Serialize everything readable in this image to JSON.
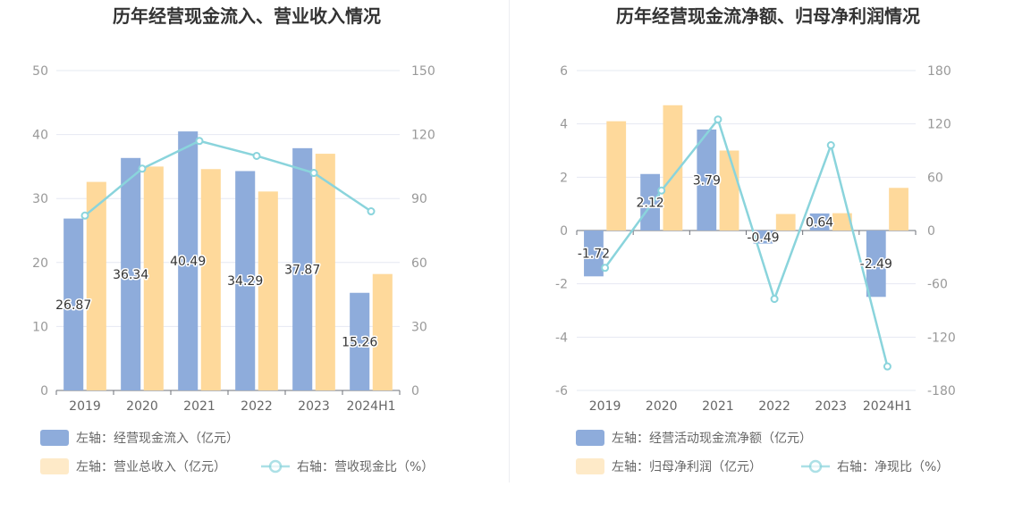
{
  "chart_data": [
    {
      "type": "bar",
      "title": "历年经营现金流入、营业收入情况",
      "categories": [
        "2019",
        "2020",
        "2021",
        "2022",
        "2023",
        "2024H1"
      ],
      "left_axis": {
        "min": 0,
        "max": 50,
        "ticks": [
          "0",
          "10",
          "20",
          "30",
          "40",
          "50"
        ]
      },
      "right_axis": {
        "min": 0,
        "max": 150,
        "ticks": [
          "0",
          "30",
          "60",
          "90",
          "120",
          "150"
        ]
      },
      "grid": true,
      "legend_position": "bottom-left",
      "series": [
        {
          "name": "左轴：经营现金流入（亿元）",
          "type": "bar",
          "axis": "left",
          "color": "#8eacdb",
          "values": [
            26.87,
            36.34,
            40.49,
            34.29,
            37.87,
            15.26
          ],
          "labels": [
            "26.87",
            "36.34",
            "40.49",
            "34.29",
            "37.87",
            "15.26"
          ]
        },
        {
          "name": "左轴：营业总收入（亿元）",
          "type": "bar",
          "axis": "left",
          "color": "#fed99b",
          "values": [
            32.6,
            35.0,
            34.6,
            31.1,
            37.0,
            18.2
          ]
        },
        {
          "name": "右轴：营收现金比（%）",
          "type": "line",
          "axis": "right",
          "color": "#8ad4dc",
          "values": [
            82,
            104,
            117,
            110,
            102,
            84
          ]
        }
      ]
    },
    {
      "type": "bar",
      "title": "历年经营现金流净额、归母净利润情况",
      "categories": [
        "2019",
        "2020",
        "2021",
        "2022",
        "2023",
        "2024H1"
      ],
      "left_axis": {
        "min": -6,
        "max": 6,
        "ticks": [
          "-6",
          "-4",
          "-2",
          "0",
          "2",
          "4",
          "6"
        ]
      },
      "right_axis": {
        "min": -180,
        "max": 180,
        "ticks": [
          "-180",
          "-120",
          "-60",
          "0",
          "60",
          "120",
          "180"
        ]
      },
      "grid": true,
      "legend_position": "bottom-left",
      "series": [
        {
          "name": "左轴：经营活动现金流净额（亿元）",
          "type": "bar",
          "axis": "left",
          "color": "#8eacdb",
          "values": [
            -1.72,
            2.12,
            3.79,
            -0.49,
            0.64,
            -2.49
          ],
          "labels": [
            "-1.72",
            "2.12",
            "3.79",
            "-0.49",
            "0.64",
            "-2.49"
          ]
        },
        {
          "name": "左轴：归母净利润（亿元）",
          "type": "bar",
          "axis": "left",
          "color": "#fed99b",
          "values": [
            4.1,
            4.7,
            3.0,
            0.62,
            0.65,
            1.6
          ]
        },
        {
          "name": "右轴：净现比（%）",
          "type": "line",
          "axis": "right",
          "color": "#8ad4dc",
          "values": [
            -42,
            45,
            125,
            -77,
            96,
            -153
          ]
        }
      ]
    }
  ]
}
